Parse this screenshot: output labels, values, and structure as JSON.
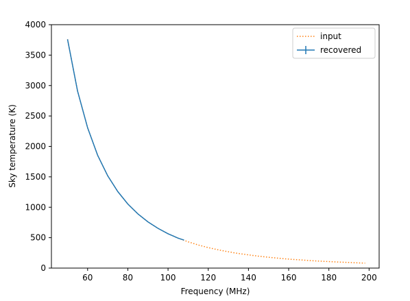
{
  "chart_data": {
    "type": "line",
    "xlabel": "Frequency (MHz)",
    "ylabel": "Sky temperature (K)",
    "xlim": [
      42,
      205
    ],
    "ylim": [
      0,
      4000
    ],
    "xticks": [
      60,
      80,
      100,
      120,
      140,
      160,
      180,
      200
    ],
    "yticks": [
      0,
      500,
      1000,
      1500,
      2000,
      2500,
      3000,
      3500,
      4000
    ],
    "grid": false,
    "legend_position": "top-right",
    "series": [
      {
        "name": "input",
        "style": "dotted",
        "color": "#ff7f0e",
        "x": [
          50,
          55,
          60,
          65,
          70,
          75,
          80,
          85,
          90,
          95,
          100,
          105,
          110,
          115,
          120,
          125,
          130,
          135,
          140,
          145,
          150,
          155,
          160,
          165,
          170,
          175,
          180,
          185,
          190,
          195,
          198
        ],
        "y": [
          3760,
          2910,
          2305,
          1855,
          1517,
          1257,
          1054,
          891,
          760,
          653,
          565,
          492,
          431,
          380,
          337,
          300,
          268,
          240,
          217,
          196,
          178,
          162,
          148,
          136,
          125,
          115,
          107,
          99,
          92,
          85,
          82
        ]
      },
      {
        "name": "recovered",
        "style": "solid",
        "color": "#1f77b4",
        "x": [
          50,
          55,
          60,
          65,
          70,
          75,
          80,
          85,
          90,
          95,
          100,
          105,
          108
        ],
        "y": [
          3760,
          2910,
          2305,
          1855,
          1517,
          1257,
          1054,
          891,
          760,
          653,
          565,
          492,
          460
        ]
      }
    ]
  }
}
